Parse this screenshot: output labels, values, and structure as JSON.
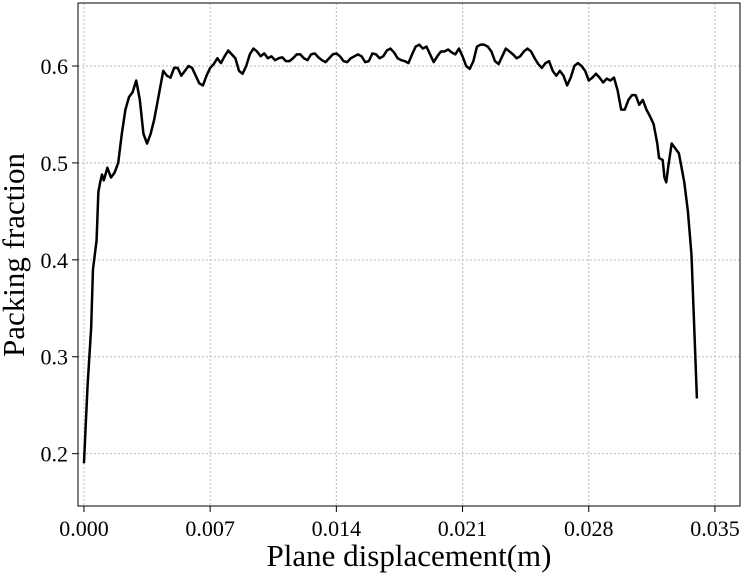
{
  "chart_data": {
    "type": "line",
    "xlabel": "Plane displacement(m)",
    "ylabel": "Packing fraction",
    "xlim": [
      -0.00033,
      0.03639
    ],
    "ylim": [
      0.146,
      0.665
    ],
    "xticks": [
      {
        "value": 0,
        "label": "0.000"
      },
      0.007,
      0.014,
      0.021,
      0.028,
      0.035
    ],
    "yticks": [
      0.2,
      0.3,
      0.4,
      0.5,
      0.6
    ],
    "grid": true,
    "series": [
      {
        "color": "#000000",
        "x": [
          0.0,
          0.0002,
          0.0004,
          0.0005,
          0.0007,
          0.0008,
          0.0009,
          0.001,
          0.0011,
          0.0013,
          0.0015,
          0.0017,
          0.0019,
          0.0021,
          0.0023,
          0.0025,
          0.0027,
          0.0029,
          0.0031,
          0.0033,
          0.0035,
          0.0037,
          0.0039,
          0.0041,
          0.0043,
          0.0044,
          0.0046,
          0.0048,
          0.005,
          0.0052,
          0.0054,
          0.0056,
          0.0058,
          0.006,
          0.0062,
          0.0064,
          0.0066,
          0.0068,
          0.007,
          0.0072,
          0.0074,
          0.0076,
          0.0078,
          0.008,
          0.0082,
          0.0084,
          0.0086,
          0.0088,
          0.009,
          0.0092,
          0.0094,
          0.0096,
          0.0098,
          0.01,
          0.0102,
          0.0104,
          0.0106,
          0.0108,
          0.011,
          0.0112,
          0.0114,
          0.0116,
          0.0118,
          0.012,
          0.0122,
          0.0124,
          0.0126,
          0.0128,
          0.013,
          0.0132,
          0.0134,
          0.0136,
          0.0138,
          0.014,
          0.0142,
          0.0144,
          0.0146,
          0.0148,
          0.015,
          0.0152,
          0.0154,
          0.0156,
          0.0158,
          0.016,
          0.0162,
          0.0164,
          0.0166,
          0.0168,
          0.017,
          0.0172,
          0.0174,
          0.0176,
          0.0178,
          0.018,
          0.0182,
          0.0184,
          0.0186,
          0.0188,
          0.019,
          0.0192,
          0.0194,
          0.0196,
          0.0198,
          0.02,
          0.0202,
          0.0204,
          0.0206,
          0.0208,
          0.021,
          0.0212,
          0.0214,
          0.0216,
          0.0218,
          0.022,
          0.0222,
          0.0224,
          0.0226,
          0.0228,
          0.023,
          0.0232,
          0.0234,
          0.0236,
          0.0238,
          0.024,
          0.0242,
          0.0244,
          0.0246,
          0.0248,
          0.025,
          0.0252,
          0.0254,
          0.0256,
          0.0258,
          0.026,
          0.0262,
          0.0264,
          0.0266,
          0.0268,
          0.027,
          0.0272,
          0.0274,
          0.0276,
          0.0278,
          0.028,
          0.0282,
          0.0284,
          0.0286,
          0.0288,
          0.029,
          0.0292,
          0.0294,
          0.0296,
          0.0298,
          0.03,
          0.0302,
          0.0304,
          0.0306,
          0.0308,
          0.031,
          0.0312,
          0.0314,
          0.0316,
          0.0318,
          0.0319,
          0.0321,
          0.0322,
          0.0323,
          0.0324,
          0.0326,
          0.0328,
          0.033,
          0.0332,
          0.0333,
          0.0335,
          0.0337,
          0.034
        ],
        "values": [
          0.19,
          0.27,
          0.33,
          0.39,
          0.42,
          0.47,
          0.48,
          0.488,
          0.482,
          0.495,
          0.485,
          0.49,
          0.5,
          0.53,
          0.555,
          0.568,
          0.573,
          0.585,
          0.565,
          0.53,
          0.52,
          0.53,
          0.545,
          0.565,
          0.585,
          0.595,
          0.59,
          0.588,
          0.598,
          0.598,
          0.59,
          0.595,
          0.6,
          0.598,
          0.59,
          0.582,
          0.58,
          0.59,
          0.598,
          0.602,
          0.608,
          0.603,
          0.61,
          0.616,
          0.612,
          0.608,
          0.595,
          0.592,
          0.6,
          0.612,
          0.618,
          0.615,
          0.61,
          0.613,
          0.608,
          0.61,
          0.606,
          0.608,
          0.609,
          0.605,
          0.605,
          0.608,
          0.612,
          0.612,
          0.608,
          0.606,
          0.612,
          0.613,
          0.609,
          0.606,
          0.604,
          0.608,
          0.612,
          0.613,
          0.61,
          0.605,
          0.604,
          0.608,
          0.61,
          0.612,
          0.61,
          0.604,
          0.605,
          0.613,
          0.612,
          0.608,
          0.61,
          0.616,
          0.618,
          0.614,
          0.608,
          0.606,
          0.605,
          0.603,
          0.612,
          0.62,
          0.622,
          0.618,
          0.62,
          0.612,
          0.604,
          0.61,
          0.615,
          0.615,
          0.617,
          0.614,
          0.612,
          0.618,
          0.61,
          0.6,
          0.597,
          0.605,
          0.62,
          0.622,
          0.622,
          0.62,
          0.615,
          0.605,
          0.602,
          0.61,
          0.618,
          0.615,
          0.612,
          0.608,
          0.61,
          0.615,
          0.618,
          0.615,
          0.608,
          0.602,
          0.598,
          0.603,
          0.605,
          0.595,
          0.59,
          0.595,
          0.59,
          0.58,
          0.588,
          0.6,
          0.603,
          0.6,
          0.595,
          0.585,
          0.588,
          0.592,
          0.588,
          0.583,
          0.587,
          0.585,
          0.588,
          0.575,
          0.555,
          0.555,
          0.565,
          0.57,
          0.57,
          0.56,
          0.565,
          0.555,
          0.548,
          0.54,
          0.52,
          0.505,
          0.503,
          0.485,
          0.48,
          0.495,
          0.52,
          0.515,
          0.51,
          0.49,
          0.48,
          0.45,
          0.405,
          0.257
        ]
      }
    ]
  }
}
